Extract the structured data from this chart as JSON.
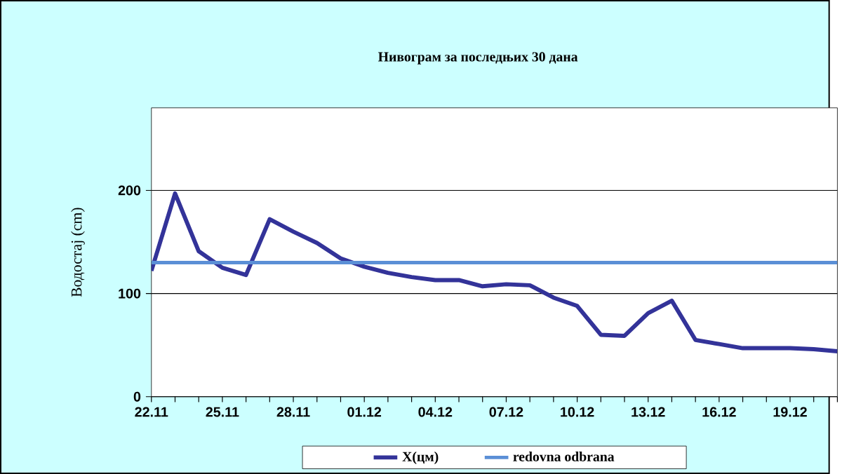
{
  "chart_data": {
    "type": "line",
    "title": "Нивограм за последњих 30 дана",
    "ylabel": "Водостај (cm)",
    "categories": [
      "22.11",
      null,
      null,
      "25.11",
      null,
      null,
      "28.11",
      null,
      null,
      "01.12",
      null,
      null,
      "04.12",
      null,
      null,
      "07.12",
      null,
      null,
      "10.12",
      null,
      null,
      "13.12",
      null,
      null,
      "16.12",
      null,
      null,
      "19.12",
      null,
      null
    ],
    "series": [
      {
        "name": "X(цм)",
        "color": "#333399",
        "values": [
          122,
          197,
          141,
          125,
          118,
          172,
          160,
          149,
          134,
          126,
          120,
          116,
          113,
          113,
          107,
          109,
          108,
          96,
          88,
          60,
          59,
          81,
          93,
          55,
          51,
          47,
          47,
          47,
          46,
          44
        ]
      },
      {
        "name": "redovna odbrana",
        "color": "#5b8fd6",
        "values": [
          130,
          130,
          130,
          130,
          130,
          130,
          130,
          130,
          130,
          130,
          130,
          130,
          130,
          130,
          130,
          130,
          130,
          130,
          130,
          130,
          130,
          130,
          130,
          130,
          130,
          130,
          130,
          130,
          130,
          130
        ]
      }
    ],
    "ylim": [
      0,
      280
    ],
    "yticks": [
      0,
      100,
      200
    ],
    "grid": "y",
    "legend": "bottom",
    "marker": "none",
    "line_style": "solid"
  }
}
